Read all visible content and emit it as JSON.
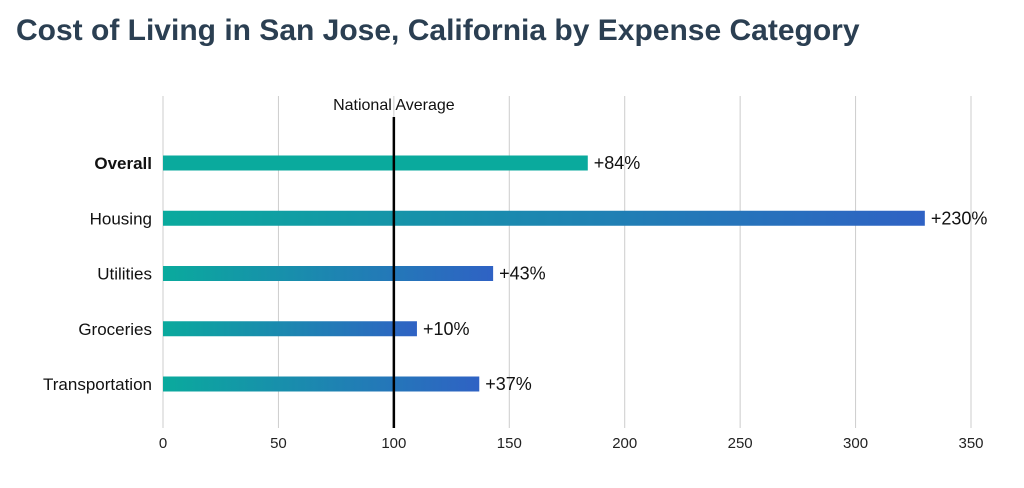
{
  "title": "Cost of Living in San Jose, California by Expense Category",
  "chart_data": {
    "type": "bar",
    "orientation": "horizontal",
    "title": "Cost of Living in San Jose, California by Expense Category",
    "categories": [
      "Overall",
      "Housing",
      "Utilities",
      "Groceries",
      "Transportation"
    ],
    "values": [
      184,
      330,
      143,
      110,
      137
    ],
    "data_labels": [
      "+84%",
      "+230%",
      "+43%",
      "+10%",
      "+37%"
    ],
    "bold_categories": [
      "Overall"
    ],
    "xlim": [
      0,
      350
    ],
    "xticks": [
      0,
      50,
      100,
      150,
      200,
      250,
      300,
      350
    ],
    "grid": "vertical",
    "reference_line": {
      "value": 100,
      "label": "National Average"
    },
    "colors": {
      "overall": "#0aaa9d",
      "gradient_start": "#0aaa9d",
      "gradient_end": "#2f62c4",
      "reference_line": "#000000",
      "grid": "#cccccc"
    }
  }
}
